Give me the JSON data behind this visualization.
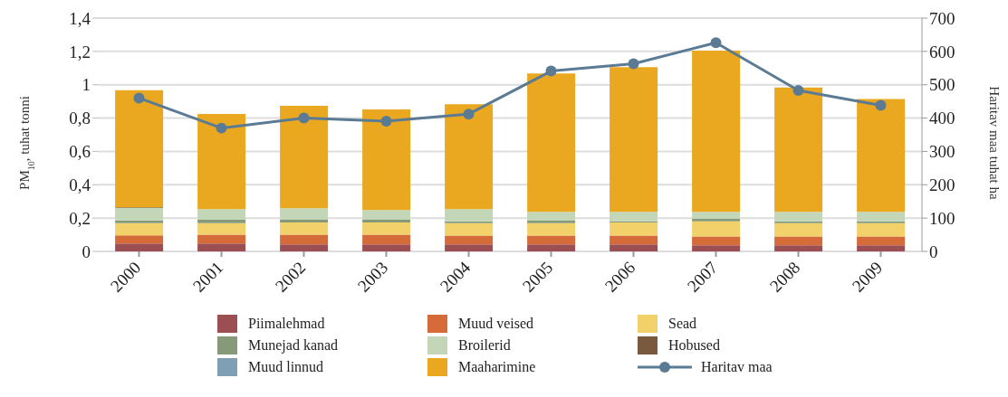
{
  "chart_data": {
    "type": "bar",
    "stacked": true,
    "categories": [
      "2000",
      "2001",
      "2002",
      "2003",
      "2004",
      "2005",
      "2006",
      "2007",
      "2008",
      "2009"
    ],
    "ylabel": "PM$_{10}$, tuhat tonni",
    "y2label": "Haritav maa tuhat ha",
    "ylim": [
      0,
      1.4
    ],
    "yticks": [
      0,
      {
        "value": 0.2,
        "label": "0,2"
      },
      {
        "value": 0.4,
        "label": "0,4"
      },
      {
        "value": 0.6,
        "label": "0,6"
      },
      {
        "value": 0.8,
        "label": "0,8"
      },
      1,
      {
        "value": 1.2,
        "label": "1,2"
      },
      {
        "value": 1.4,
        "label": "1,4"
      }
    ],
    "y2lim": [
      0,
      700
    ],
    "y2ticks": [
      0,
      100,
      200,
      300,
      400,
      500,
      600,
      700
    ],
    "grid": "y",
    "legend": "bottom",
    "series": [
      {
        "name": "Piimalehmad",
        "color": "#9b4f53",
        "values": [
          0.048,
          0.048,
          0.042,
          0.042,
          0.042,
          0.042,
          0.042,
          0.037,
          0.037,
          0.037
        ]
      },
      {
        "name": "Muud veised",
        "color": "#d56b38",
        "values": [
          0.048,
          0.052,
          0.058,
          0.058,
          0.053,
          0.053,
          0.053,
          0.053,
          0.053,
          0.053
        ]
      },
      {
        "name": "Sead",
        "color": "#f2d16b",
        "values": [
          0.074,
          0.069,
          0.074,
          0.074,
          0.074,
          0.074,
          0.079,
          0.09,
          0.079,
          0.079
        ]
      },
      {
        "name": "Munejad kanad",
        "color": "#869a7a",
        "values": [
          0.016,
          0.021,
          0.016,
          0.016,
          0.011,
          0.016,
          0.006,
          0.015,
          0.011,
          0.011
        ]
      },
      {
        "name": "Broilerid",
        "color": "#c3d6b8",
        "values": [
          0.075,
          0.064,
          0.069,
          0.058,
          0.074,
          0.053,
          0.058,
          0.043,
          0.058,
          0.058
        ]
      },
      {
        "name": "Hobused",
        "color": "#7a5a3f",
        "values": [
          0.003,
          0,
          0,
          0,
          0,
          0,
          0,
          0,
          0,
          0
        ]
      },
      {
        "name": "Muud linnud",
        "color": "#7f9fb5",
        "values": [
          0,
          0,
          0,
          0,
          0,
          0,
          0,
          0,
          0,
          0
        ]
      },
      {
        "name": "Maaharimine",
        "color": "#eaa820",
        "values": [
          0.703,
          0.571,
          0.614,
          0.604,
          0.629,
          0.83,
          0.867,
          0.967,
          0.746,
          0.677
        ]
      },
      {
        "name": "Haritav maa",
        "type": "line",
        "axis": "y2",
        "color": "#5b7a94",
        "marker": "circle",
        "values": [
          460,
          370,
          400,
          391,
          412,
          541,
          563,
          626,
          483,
          438
        ]
      }
    ]
  }
}
